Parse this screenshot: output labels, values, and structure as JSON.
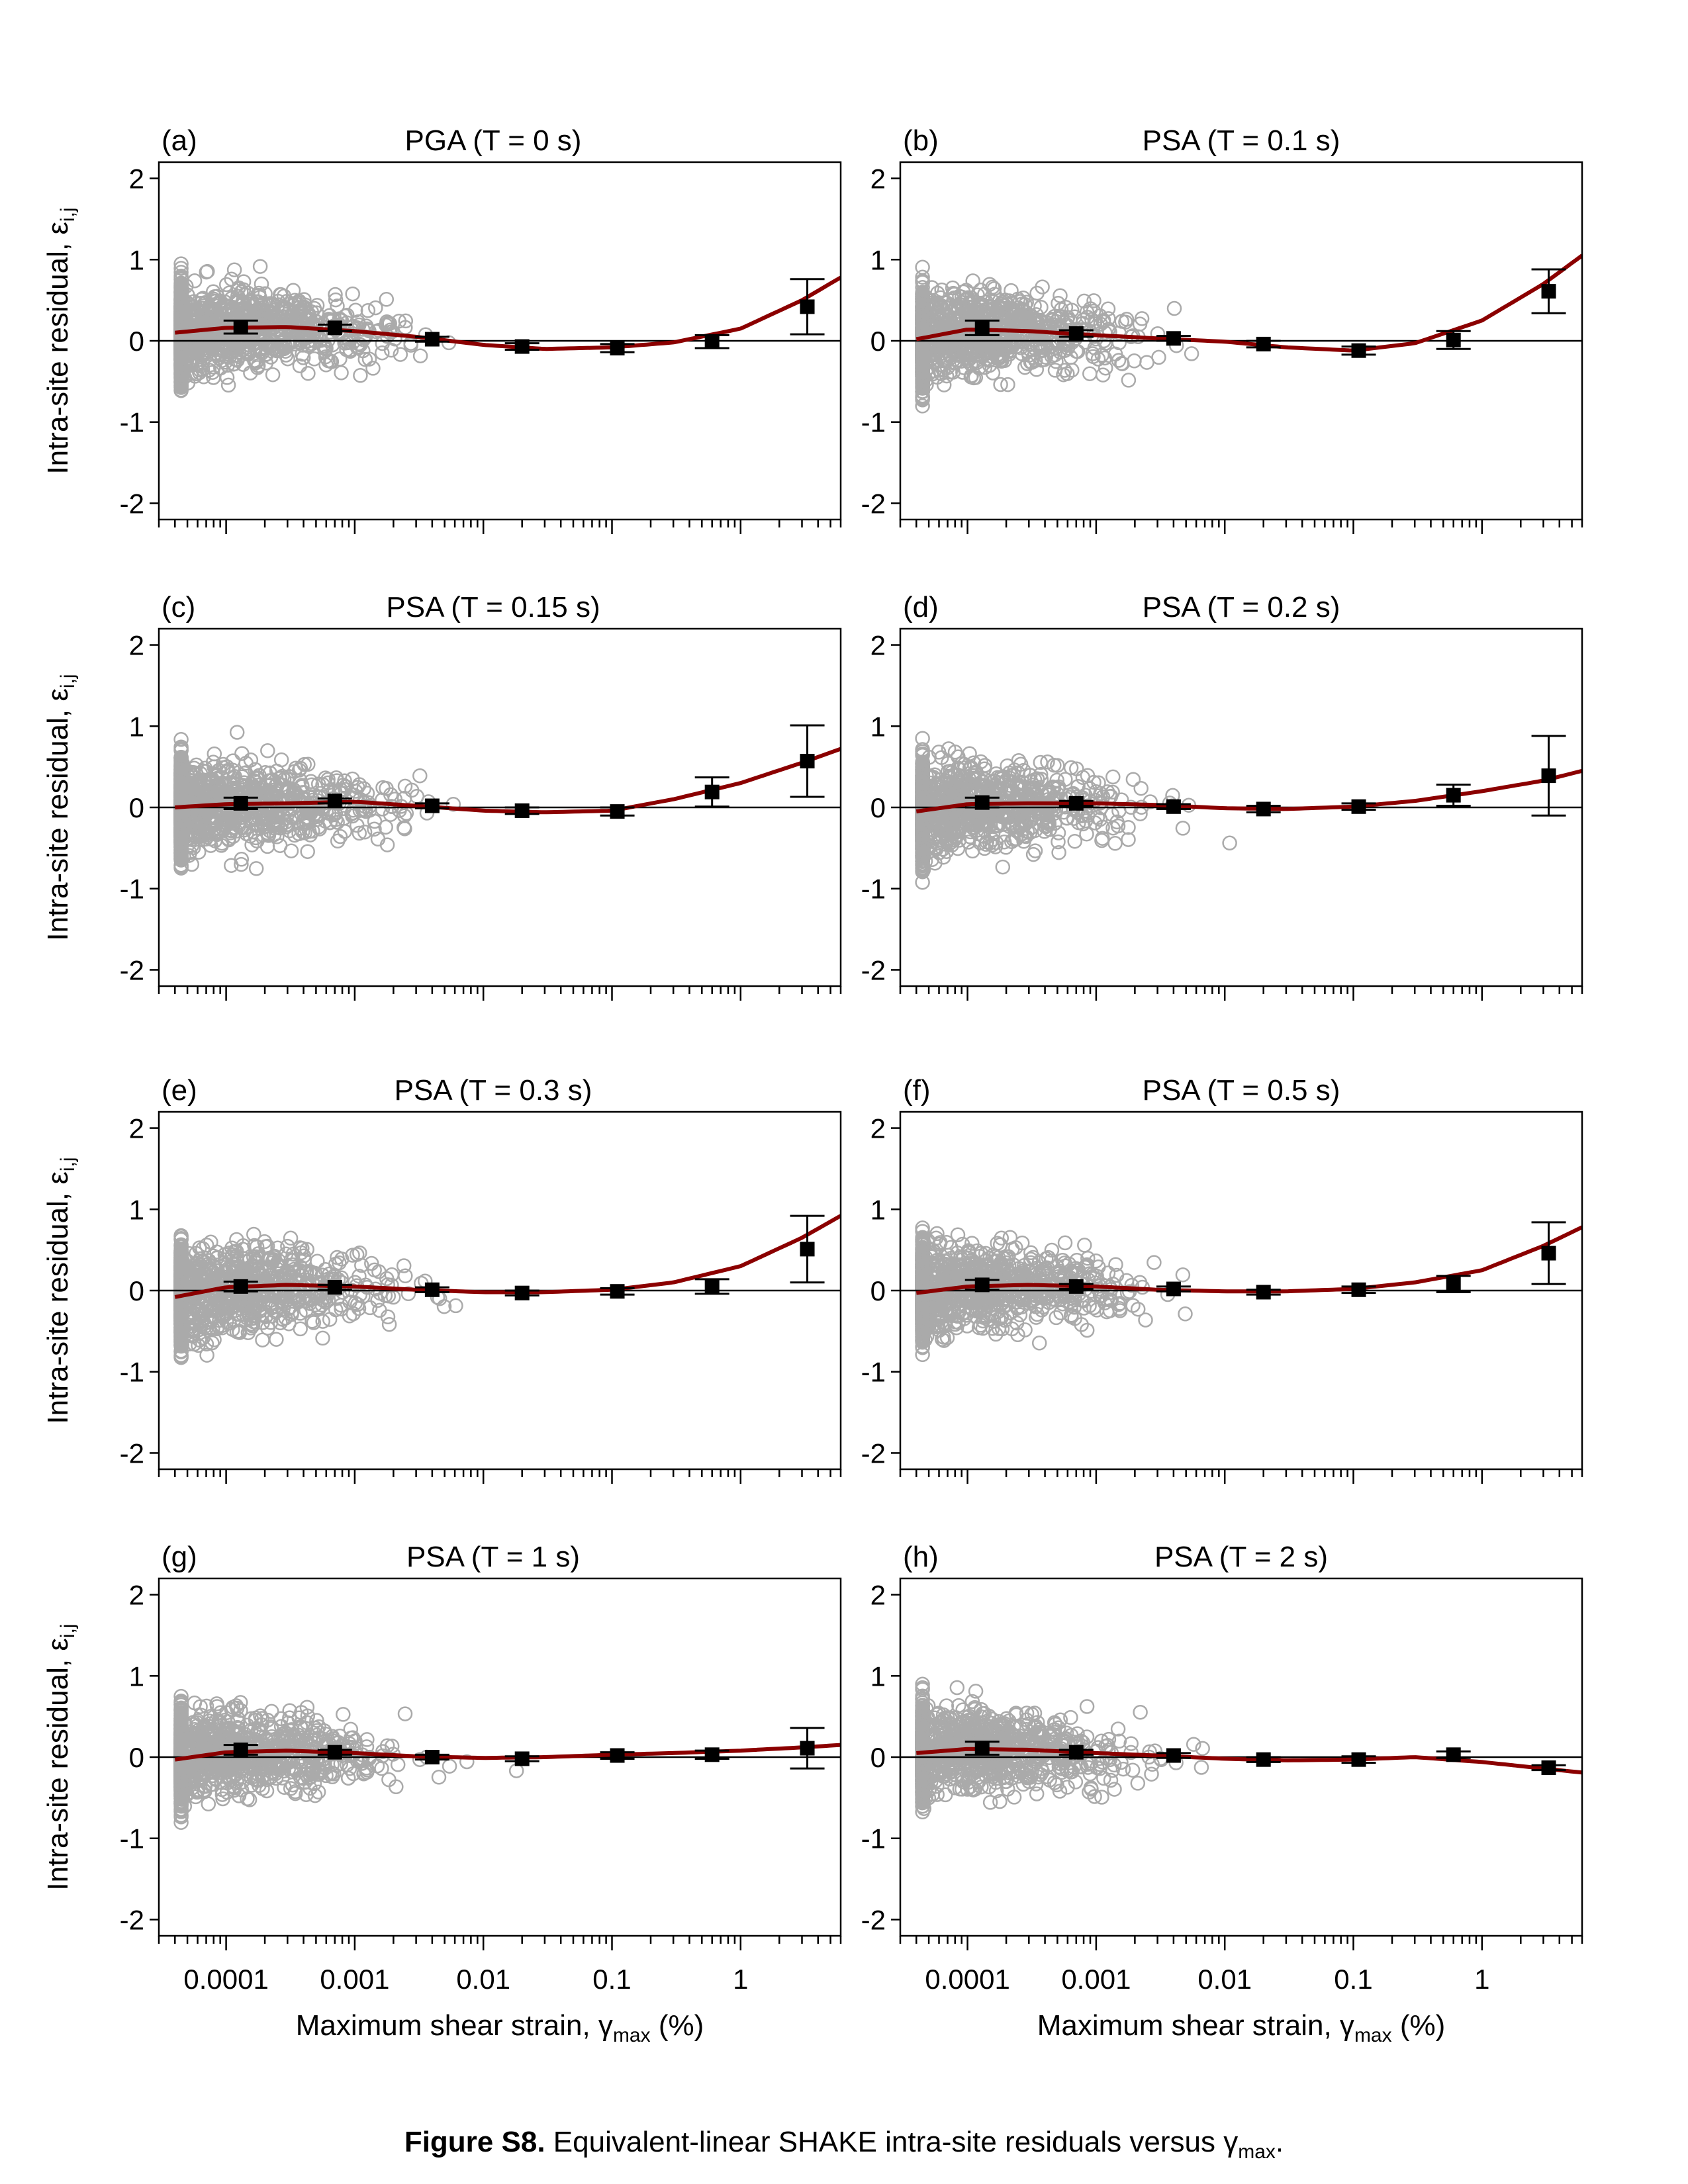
{
  "caption": {
    "label": "Figure S8.",
    "text": "Equivalent-linear SHAKE intra-site residuals versus",
    "symbol": "γ",
    "subscript": "max",
    "end": "."
  },
  "axes": {
    "ylabel": "Intra-site residual, ε",
    "ylabel_sub": "i,j",
    "xlabel": "Maximum shear strain, γ",
    "xlabel_sub": "max",
    "xlabel_unit": "(%)",
    "x_scale": "log",
    "xlim": [
      3e-05,
      6
    ],
    "ylim": [
      -2.2,
      2.2
    ],
    "yticks": [
      "2",
      "1",
      "0",
      "-1",
      "-2"
    ],
    "xticks": [
      "0.0001",
      "0.001",
      "0.01",
      "0.1",
      "1"
    ],
    "zero_line": true
  },
  "colors": {
    "scatter": "#aaaaaa",
    "trend": "#8b0000",
    "bins": "#000000"
  },
  "chart_data": [
    {
      "type": "scatter",
      "panel": "(a)",
      "title": "PGA (T = 0 s)",
      "bin_x": [
        0.00013,
        0.0007,
        0.004,
        0.02,
        0.11,
        0.6,
        3.3
      ],
      "bin_mean": [
        0.17,
        0.16,
        0.02,
        -0.07,
        -0.09,
        -0.01,
        0.42
      ],
      "bin_err": [
        0.08,
        0.04,
        0.03,
        0.04,
        0.05,
        0.08,
        0.34
      ],
      "trend_x": [
        4e-05,
        0.0001,
        0.0003,
        0.001,
        0.003,
        0.01,
        0.03,
        0.1,
        0.3,
        1,
        3,
        6
      ],
      "trend_y": [
        0.1,
        0.16,
        0.17,
        0.12,
        0.05,
        -0.05,
        -0.1,
        -0.08,
        -0.02,
        0.15,
        0.5,
        0.78
      ]
    },
    {
      "type": "scatter",
      "panel": "(b)",
      "title": "PSA (T = 0.1 s)",
      "bin_x": [
        0.00013,
        0.0007,
        0.004,
        0.02,
        0.11,
        0.6,
        3.3
      ],
      "bin_mean": [
        0.16,
        0.09,
        0.03,
        -0.04,
        -0.12,
        0.01,
        0.61
      ],
      "bin_err": [
        0.09,
        0.04,
        0.03,
        0.04,
        0.05,
        0.11,
        0.27
      ],
      "trend_x": [
        4e-05,
        0.0001,
        0.0003,
        0.001,
        0.003,
        0.01,
        0.03,
        0.1,
        0.3,
        1,
        3,
        6
      ],
      "trend_y": [
        0.02,
        0.14,
        0.12,
        0.07,
        0.03,
        -0.01,
        -0.08,
        -0.12,
        -0.03,
        0.25,
        0.7,
        1.05
      ]
    },
    {
      "type": "scatter",
      "panel": "(c)",
      "title": "PSA (T = 0.15 s)",
      "bin_x": [
        0.00013,
        0.0007,
        0.004,
        0.02,
        0.11,
        0.6,
        3.3
      ],
      "bin_mean": [
        0.05,
        0.08,
        0.02,
        -0.04,
        -0.05,
        0.19,
        0.57
      ],
      "bin_err": [
        0.07,
        0.03,
        0.03,
        0.04,
        0.05,
        0.18,
        0.44
      ],
      "trend_x": [
        4e-05,
        0.0001,
        0.0003,
        0.001,
        0.003,
        0.01,
        0.03,
        0.1,
        0.3,
        1,
        3,
        6
      ],
      "trend_y": [
        0.0,
        0.04,
        0.05,
        0.07,
        0.02,
        -0.04,
        -0.06,
        -0.04,
        0.1,
        0.3,
        0.55,
        0.72
      ]
    },
    {
      "type": "scatter",
      "panel": "(d)",
      "title": "PSA (T = 0.2 s)",
      "bin_x": [
        0.00013,
        0.0007,
        0.004,
        0.02,
        0.11,
        0.6,
        3.3
      ],
      "bin_mean": [
        0.06,
        0.05,
        0.01,
        -0.02,
        0.01,
        0.15,
        0.39
      ],
      "bin_err": [
        0.06,
        0.03,
        0.03,
        0.04,
        0.04,
        0.13,
        0.49
      ],
      "trend_x": [
        4e-05,
        0.0001,
        0.0003,
        0.001,
        0.003,
        0.01,
        0.03,
        0.1,
        0.3,
        1,
        3,
        6
      ],
      "trend_y": [
        -0.05,
        0.04,
        0.05,
        0.05,
        0.03,
        -0.01,
        -0.02,
        0.01,
        0.08,
        0.2,
        0.33,
        0.45
      ]
    },
    {
      "type": "scatter",
      "panel": "(e)",
      "title": "PSA (T = 0.3 s)",
      "bin_x": [
        0.00013,
        0.0007,
        0.004,
        0.02,
        0.11,
        0.6,
        3.3
      ],
      "bin_mean": [
        0.05,
        0.04,
        0.01,
        -0.03,
        -0.01,
        0.05,
        0.51
      ],
      "bin_err": [
        0.06,
        0.03,
        0.03,
        0.03,
        0.04,
        0.09,
        0.41
      ],
      "trend_x": [
        4e-05,
        0.0001,
        0.0003,
        0.001,
        0.003,
        0.01,
        0.03,
        0.1,
        0.3,
        1,
        3,
        6
      ],
      "trend_y": [
        -0.08,
        0.04,
        0.07,
        0.05,
        0.01,
        -0.02,
        -0.02,
        0.01,
        0.1,
        0.3,
        0.65,
        0.92
      ]
    },
    {
      "type": "scatter",
      "panel": "(f)",
      "title": "PSA (T = 0.5 s)",
      "bin_x": [
        0.00013,
        0.0007,
        0.004,
        0.02,
        0.11,
        0.6,
        3.3
      ],
      "bin_mean": [
        0.07,
        0.05,
        0.02,
        -0.02,
        0.01,
        0.08,
        0.46
      ],
      "bin_err": [
        0.06,
        0.03,
        0.03,
        0.03,
        0.04,
        0.1,
        0.38
      ],
      "trend_x": [
        4e-05,
        0.0001,
        0.0003,
        0.001,
        0.003,
        0.01,
        0.03,
        0.1,
        0.3,
        1,
        3,
        6
      ],
      "trend_y": [
        -0.03,
        0.05,
        0.07,
        0.05,
        0.01,
        -0.01,
        -0.01,
        0.02,
        0.1,
        0.25,
        0.55,
        0.78
      ]
    },
    {
      "type": "scatter",
      "panel": "(g)",
      "title": "PSA (T = 1 s)",
      "bin_x": [
        0.00013,
        0.0007,
        0.004,
        0.02,
        0.11,
        0.6,
        3.3
      ],
      "bin_mean": [
        0.09,
        0.06,
        0.0,
        -0.02,
        0.02,
        0.03,
        0.11
      ],
      "bin_err": [
        0.06,
        0.03,
        0.03,
        0.03,
        0.04,
        0.05,
        0.25
      ],
      "trend_x": [
        4e-05,
        0.0001,
        0.0003,
        0.001,
        0.003,
        0.01,
        0.03,
        0.1,
        0.3,
        1,
        3,
        6
      ],
      "trend_y": [
        -0.03,
        0.06,
        0.08,
        0.05,
        0.01,
        -0.01,
        0.0,
        0.03,
        0.05,
        0.08,
        0.12,
        0.15
      ]
    },
    {
      "type": "scatter",
      "panel": "(h)",
      "title": "PSA (T = 2 s)",
      "bin_x": [
        0.00013,
        0.0007,
        0.004,
        0.02,
        0.11,
        0.6,
        3.3
      ],
      "bin_mean": [
        0.11,
        0.06,
        0.02,
        -0.03,
        -0.03,
        0.03,
        -0.13
      ],
      "bin_err": [
        0.08,
        0.03,
        0.03,
        0.03,
        0.04,
        0.04,
        0.03
      ],
      "trend_x": [
        4e-05,
        0.0001,
        0.0003,
        0.001,
        0.003,
        0.01,
        0.03,
        0.1,
        0.3,
        1,
        3,
        6
      ],
      "trend_y": [
        0.05,
        0.1,
        0.09,
        0.05,
        0.02,
        -0.02,
        -0.04,
        -0.03,
        0.0,
        -0.06,
        -0.14,
        -0.19
      ]
    }
  ]
}
